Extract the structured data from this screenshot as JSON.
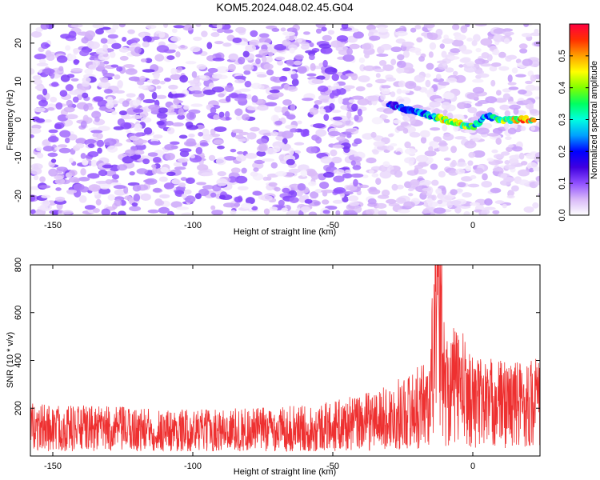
{
  "title": "KOM5.2024.048.02.45.G04",
  "chart_data": [
    {
      "type": "heatmap",
      "name": "spectrogram",
      "xlabel": "Height of straight line (km)",
      "ylabel": "Frequency (Hz)",
      "xlim": [
        -158,
        24
      ],
      "ylim": [
        -25,
        25
      ],
      "x_ticks": [
        -150,
        -100,
        -50,
        0
      ],
      "y_ticks": [
        -20,
        -10,
        0,
        10,
        20
      ],
      "colorbar": {
        "label": "Normalized spectral amplitude",
        "range": [
          0.0,
          0.6
        ],
        "ticks": [
          0.0,
          0.1,
          0.2,
          0.3,
          0.4,
          0.5
        ],
        "colormap": [
          "#ffffff",
          "#d8b8f8",
          "#9050ff",
          "#4000e0",
          "#0000ff",
          "#00a0ff",
          "#00ffe0",
          "#00ff60",
          "#80ff00",
          "#ffff00",
          "#ffa000",
          "#ff3000",
          "#ff0040"
        ]
      },
      "ridge": {
        "description_free": true,
        "x": [
          -30,
          -25,
          -20,
          -15,
          -10,
          -5,
          0,
          5,
          10,
          15,
          22
        ],
        "y": [
          4,
          3,
          2,
          1,
          0,
          -1,
          -2,
          1,
          0,
          0,
          0
        ],
        "amplitude": [
          0.2,
          0.25,
          0.28,
          0.3,
          0.45,
          0.5,
          0.35,
          0.3,
          0.4,
          0.45,
          0.55
        ]
      }
    },
    {
      "type": "line",
      "xlabel": "Height of straight line (km)",
      "ylabel": "SNR (10 * v/v)",
      "xlim": [
        -158,
        24
      ],
      "ylim": [
        0,
        800
      ],
      "x_ticks": [
        -150,
        -100,
        -50,
        0
      ],
      "y_ticks": [
        200,
        400,
        600,
        800
      ],
      "color": "#ee3030",
      "series": [
        {
          "x": [
            -158,
            -140,
            -120,
            -100,
            -80,
            -60,
            -50,
            -40,
            -30,
            -20,
            -15,
            -13,
            -10,
            -5,
            0,
            10,
            20,
            24
          ],
          "y": [
            120,
            115,
            110,
            105,
            110,
            115,
            125,
            140,
            160,
            200,
            240,
            800,
            280,
            300,
            230,
            220,
            220,
            230
          ]
        }
      ]
    }
  ]
}
